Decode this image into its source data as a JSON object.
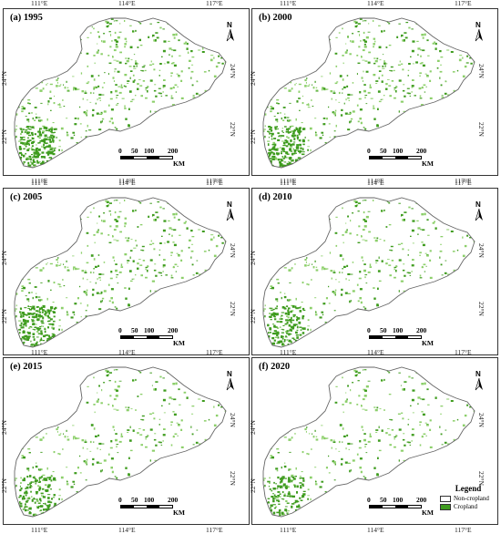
{
  "panels": [
    {
      "label": "(a) 1995",
      "density": 1.0
    },
    {
      "label": "(b) 2000",
      "density": 0.95
    },
    {
      "label": "(c) 2005",
      "density": 0.85
    },
    {
      "label": "(d) 2010",
      "density": 0.7
    },
    {
      "label": "(e) 2015",
      "density": 0.65
    },
    {
      "label": "(f) 2020",
      "density": 0.62
    }
  ],
  "axes": {
    "lon_labels": [
      "111°E",
      "114°E",
      "117°E"
    ],
    "lat_labels": [
      "24°N",
      "22°N"
    ]
  },
  "north_label": "N",
  "scale": {
    "ticks": [
      "0",
      "50",
      "100",
      "200"
    ],
    "unit": "KM"
  },
  "legend": {
    "title": "Legend",
    "items": [
      {
        "label": "Non-cropland",
        "color": "#ffffff"
      },
      {
        "label": "Cropland",
        "color": "#3f9c1f"
      }
    ]
  },
  "colors": {
    "cropland": "#3f9c1f",
    "cropland_light": "#8ccf6a",
    "boundary": "#666666"
  }
}
